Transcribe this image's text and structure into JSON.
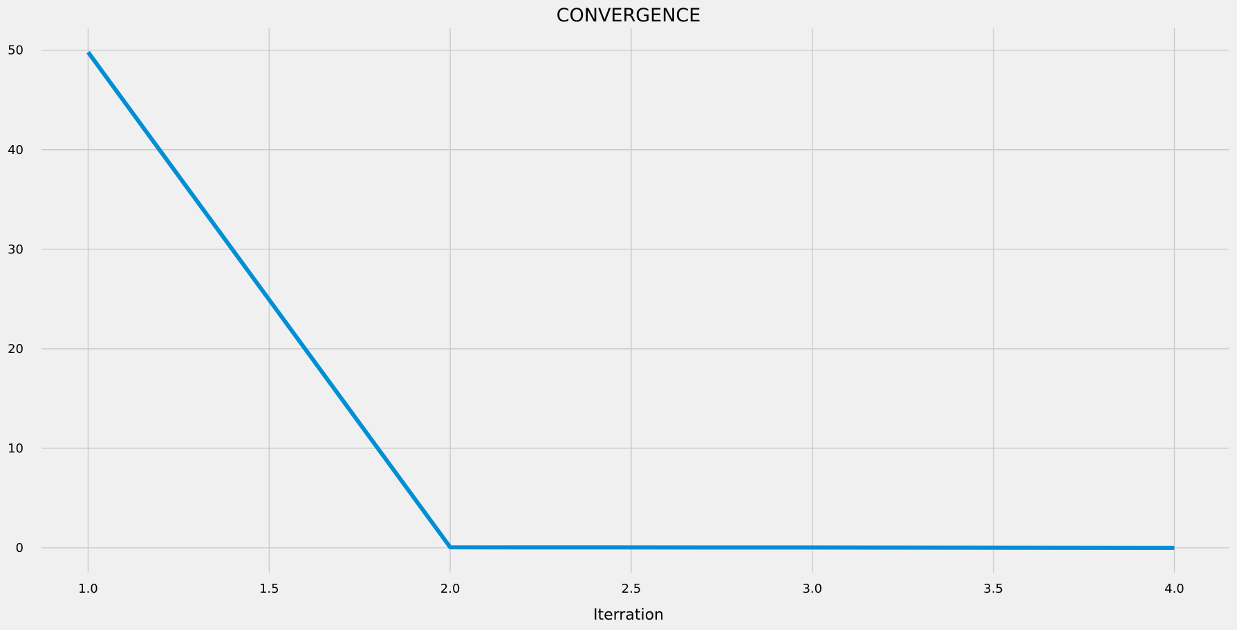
{
  "chart_data": {
    "type": "line",
    "title": "CONVERGENCE",
    "xlabel": "Iterration",
    "ylabel": "",
    "x": [
      1.0,
      2.0,
      3.0,
      4.0
    ],
    "series": [
      {
        "values": [
          49.8,
          0.05,
          0.03,
          0.0
        ]
      }
    ],
    "xlim": [
      0.875,
      4.15
    ],
    "ylim": [
      -2.5,
      52.2
    ],
    "xticks": [
      "1.0",
      "1.5",
      "2.0",
      "2.5",
      "3.0",
      "3.5",
      "4.0"
    ],
    "yticks": [
      "0",
      "10",
      "20",
      "30",
      "40",
      "50"
    ],
    "grid": true,
    "legend": "none",
    "colors": {
      "background": "#f0f0f0",
      "line": "#008fd5",
      "grid": "#cbcbcb"
    }
  }
}
